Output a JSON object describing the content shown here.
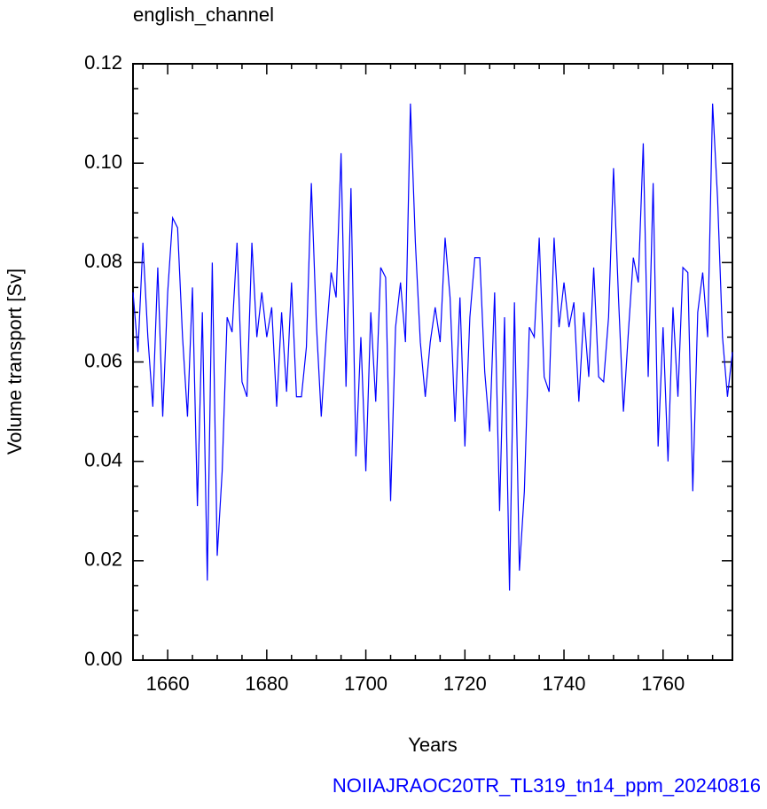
{
  "chart_data": {
    "type": "line",
    "title": "english_channel",
    "xlabel": "Years",
    "ylabel": "Volume transport [Sv]",
    "footer": "NOIIAJRAOC20TR_TL319_tn14_ppm_20240816",
    "x": [
      1653,
      1654,
      1655,
      1656,
      1657,
      1658,
      1659,
      1660,
      1661,
      1662,
      1663,
      1664,
      1665,
      1666,
      1667,
      1668,
      1669,
      1670,
      1671,
      1672,
      1673,
      1674,
      1675,
      1676,
      1677,
      1678,
      1679,
      1680,
      1681,
      1682,
      1683,
      1684,
      1685,
      1686,
      1687,
      1688,
      1689,
      1690,
      1691,
      1692,
      1693,
      1694,
      1695,
      1696,
      1697,
      1698,
      1699,
      1700,
      1701,
      1702,
      1703,
      1704,
      1705,
      1706,
      1707,
      1708,
      1709,
      1710,
      1711,
      1712,
      1713,
      1714,
      1715,
      1716,
      1717,
      1718,
      1719,
      1720,
      1721,
      1722,
      1723,
      1724,
      1725,
      1726,
      1727,
      1728,
      1729,
      1730,
      1731,
      1732,
      1733,
      1734,
      1735,
      1736,
      1737,
      1738,
      1739,
      1740,
      1741,
      1742,
      1743,
      1744,
      1745,
      1746,
      1747,
      1748,
      1749,
      1750,
      1751,
      1752,
      1753,
      1754,
      1755,
      1756,
      1757,
      1758,
      1759,
      1760,
      1761,
      1762,
      1763,
      1764,
      1765,
      1766,
      1767,
      1768,
      1769,
      1770,
      1771,
      1772,
      1773,
      1774
    ],
    "series": [
      {
        "color": "#0000ff",
        "values": [
          0.074,
          0.062,
          0.084,
          0.065,
          0.051,
          0.079,
          0.049,
          0.074,
          0.089,
          0.087,
          0.065,
          0.049,
          0.075,
          0.031,
          0.07,
          0.016,
          0.08,
          0.021,
          0.038,
          0.069,
          0.066,
          0.084,
          0.056,
          0.053,
          0.084,
          0.065,
          0.074,
          0.065,
          0.071,
          0.051,
          0.07,
          0.054,
          0.076,
          0.053,
          0.053,
          0.063,
          0.096,
          0.068,
          0.049,
          0.065,
          0.078,
          0.073,
          0.102,
          0.055,
          0.095,
          0.041,
          0.065,
          0.038,
          0.07,
          0.052,
          0.079,
          0.077,
          0.032,
          0.067,
          0.076,
          0.064,
          0.112,
          0.084,
          0.064,
          0.053,
          0.064,
          0.071,
          0.064,
          0.085,
          0.073,
          0.048,
          0.073,
          0.043,
          0.069,
          0.081,
          0.081,
          0.058,
          0.046,
          0.074,
          0.03,
          0.069,
          0.014,
          0.072,
          0.018,
          0.034,
          0.067,
          0.065,
          0.085,
          0.057,
          0.054,
          0.085,
          0.067,
          0.076,
          0.067,
          0.072,
          0.052,
          0.07,
          0.057,
          0.079,
          0.057,
          0.056,
          0.069,
          0.099,
          0.073,
          0.05,
          0.066,
          0.081,
          0.076,
          0.104,
          0.057,
          0.096,
          0.043,
          0.067,
          0.04,
          0.071,
          0.053,
          0.079,
          0.078,
          0.034,
          0.07,
          0.078,
          0.065,
          0.112,
          0.093,
          0.065,
          0.053,
          0.062
        ]
      }
    ],
    "xlim": [
      1653,
      1774
    ],
    "xticks": [
      1660,
      1680,
      1700,
      1720,
      1740,
      1760
    ],
    "xminorticks": [
      1655,
      1665,
      1670,
      1675,
      1685,
      1690,
      1695,
      1705,
      1710,
      1715,
      1725,
      1730,
      1735,
      1745,
      1750,
      1755,
      1765,
      1770
    ],
    "ylim": [
      0,
      0.12
    ],
    "yticks": [
      {
        "value": 0,
        "label": "0.00"
      },
      {
        "value": 0.02,
        "label": "0.02"
      },
      {
        "value": 0.04,
        "label": "0.04"
      },
      {
        "value": 0.06,
        "label": "0.06"
      },
      {
        "value": 0.08,
        "label": "0.08"
      },
      {
        "value": 0.1,
        "label": "0.10"
      },
      {
        "value": 0.12,
        "label": "0.12"
      }
    ],
    "yminorticks": [
      0.005,
      0.01,
      0.015,
      0.025,
      0.03,
      0.035,
      0.045,
      0.05,
      0.055,
      0.065,
      0.07,
      0.075,
      0.085,
      0.09,
      0.095,
      0.105,
      0.11,
      0.115
    ]
  }
}
